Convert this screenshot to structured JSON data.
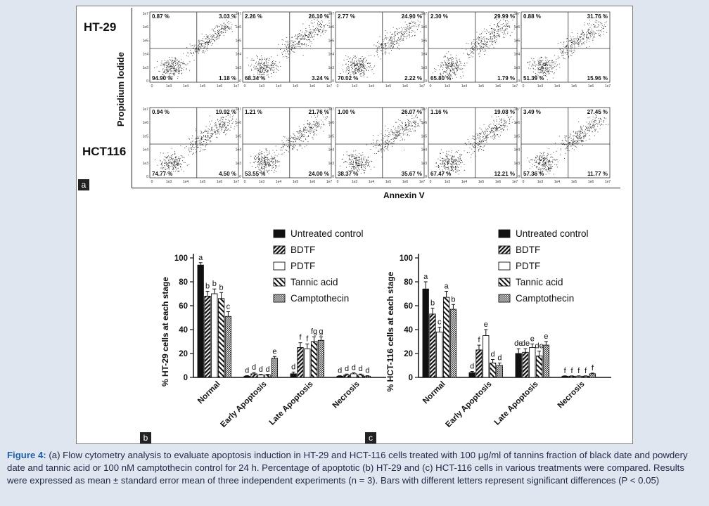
{
  "figure": {
    "panel_tags": {
      "a": "a",
      "b": "b",
      "c": "c"
    },
    "flow": {
      "ylabel": "Propidium Iodide",
      "xlabel": "Annexin V",
      "y_ticks": [
        "1e7",
        "1e6",
        "1e5",
        "1e4",
        "1e3",
        "0"
      ],
      "x_ticks": [
        "0",
        "1e3",
        "1e4",
        "1e5",
        "1e6",
        "1e7"
      ],
      "rows": [
        {
          "label": "HT-29",
          "plots": [
            {
              "ul": "0.87 %",
              "ur": "3.03 %",
              "ll": "94.90 %",
              "lr": "1.18 %"
            },
            {
              "ul": "2.26 %",
              "ur": "26.10 %",
              "ll": "68.34 %",
              "lr": "3.24 %"
            },
            {
              "ul": "2.77 %",
              "ur": "24.90 %",
              "ll": "70.02 %",
              "lr": "2.22 %"
            },
            {
              "ul": "2.30 %",
              "ur": "29.99 %",
              "ll": "65.80 %",
              "lr": "1.79 %"
            },
            {
              "ul": "0.88 %",
              "ur": "31.76 %",
              "ll": "51.39 %",
              "lr": "15.96 %"
            }
          ]
        },
        {
          "label": "HCT116",
          "plots": [
            {
              "ul": "0.94 %",
              "ur": "19.92 %",
              "ll": "74.77 %",
              "lr": "4.50 %"
            },
            {
              "ul": "1.21 %",
              "ur": "21.76 %",
              "ll": "53.55 %",
              "lr": "24.00 %"
            },
            {
              "ul": "1.00 %",
              "ur": "26.07 %",
              "ll": "38.37 %",
              "lr": "35.67 %"
            },
            {
              "ul": "1.16 %",
              "ur": "19.08 %",
              "ll": "67.47 %",
              "lr": "12.21 %"
            },
            {
              "ul": "3.49 %",
              "ur": "27.45 %",
              "ll": "57.36 %",
              "lr": "11.77 %"
            }
          ]
        }
      ]
    },
    "caption": {
      "label": "Figure 4:",
      "text": " (a) Flow cytometry analysis to evaluate apoptosis induction in HT-29 and HCT-116 cells treated with 100 μg/ml of tannins fraction of black date and powdery date and tannic acid or 100 nM camptothecin control for 24 h. Percentage of apoptotic (b) HT-29 and (c) HCT-116 cells in various treatments were compared. Results were expressed as mean ± standard error mean of three independent experiments (n = 3). Bars with different letters represent significant differences (P < 0.05)"
    }
  },
  "chart_data": [
    {
      "type": "bar",
      "panel": "b",
      "ylabel": "% HT-29 cells at each stage",
      "ylim": [
        0,
        100
      ],
      "yticks": [
        0,
        20,
        40,
        60,
        80,
        100
      ],
      "categories": [
        "Normal",
        "Early Apoptosis",
        "Late Apoptosis",
        "Necrosis"
      ],
      "series": [
        {
          "name": "Untreated control",
          "values": [
            94,
            1,
            3,
            1
          ],
          "errors": [
            2,
            0.5,
            1.5,
            0.4
          ],
          "letters": [
            "a",
            "d",
            "d",
            "d"
          ]
        },
        {
          "name": "BDTF",
          "values": [
            68,
            3,
            25,
            2
          ],
          "errors": [
            4,
            1,
            4,
            0.8
          ],
          "letters": [
            "b",
            "d",
            "f",
            "d"
          ]
        },
        {
          "name": "PDTF",
          "values": [
            70,
            2,
            24,
            3
          ],
          "errors": [
            4,
            0.5,
            4,
            0.8
          ],
          "letters": [
            "b",
            "d",
            "f",
            "d"
          ]
        },
        {
          "name": "Tannic acid",
          "values": [
            66,
            2,
            30,
            2
          ],
          "errors": [
            5,
            0.5,
            4,
            0.8
          ],
          "letters": [
            "b",
            "d",
            "fg",
            "d"
          ]
        },
        {
          "name": "Camptothecin",
          "values": [
            51,
            16,
            31,
            1
          ],
          "errors": [
            4,
            1.5,
            3,
            0.4
          ],
          "letters": [
            "c",
            "e",
            "g",
            "d"
          ]
        }
      ],
      "legend": "top-right"
    },
    {
      "type": "bar",
      "panel": "c",
      "ylabel": "% HCT-116 cells at each stage",
      "ylim": [
        0,
        100
      ],
      "yticks": [
        0,
        20,
        40,
        60,
        80,
        100
      ],
      "categories": [
        "Normal",
        "Early Apoptosis",
        "Late Apoptosis",
        "Necrosis"
      ],
      "series": [
        {
          "name": "Untreated control",
          "values": [
            74,
            4,
            20,
            1
          ],
          "errors": [
            6,
            1,
            4,
            0.3
          ],
          "letters": [
            "a",
            "d",
            "de",
            "f"
          ]
        },
        {
          "name": "BDTF",
          "values": [
            53,
            23,
            21,
            1
          ],
          "errors": [
            5,
            4,
            3,
            0.3
          ],
          "letters": [
            "b",
            "f",
            "de",
            "f"
          ]
        },
        {
          "name": "PDTF",
          "values": [
            38,
            35,
            25,
            1
          ],
          "errors": [
            4,
            5,
            3,
            0.3
          ],
          "letters": [
            "c",
            "e",
            "e",
            "f"
          ]
        },
        {
          "name": "Tannic acid",
          "values": [
            67,
            12,
            18,
            1
          ],
          "errors": [
            5,
            3,
            4,
            0.3
          ],
          "letters": [
            "a",
            "d",
            "de",
            "f"
          ]
        },
        {
          "name": "Camptothecin",
          "values": [
            57,
            10,
            27,
            3
          ],
          "errors": [
            4,
            2,
            3,
            0.6
          ],
          "letters": [
            "b",
            "d",
            "e",
            "f"
          ]
        }
      ],
      "legend": "top-right"
    }
  ]
}
